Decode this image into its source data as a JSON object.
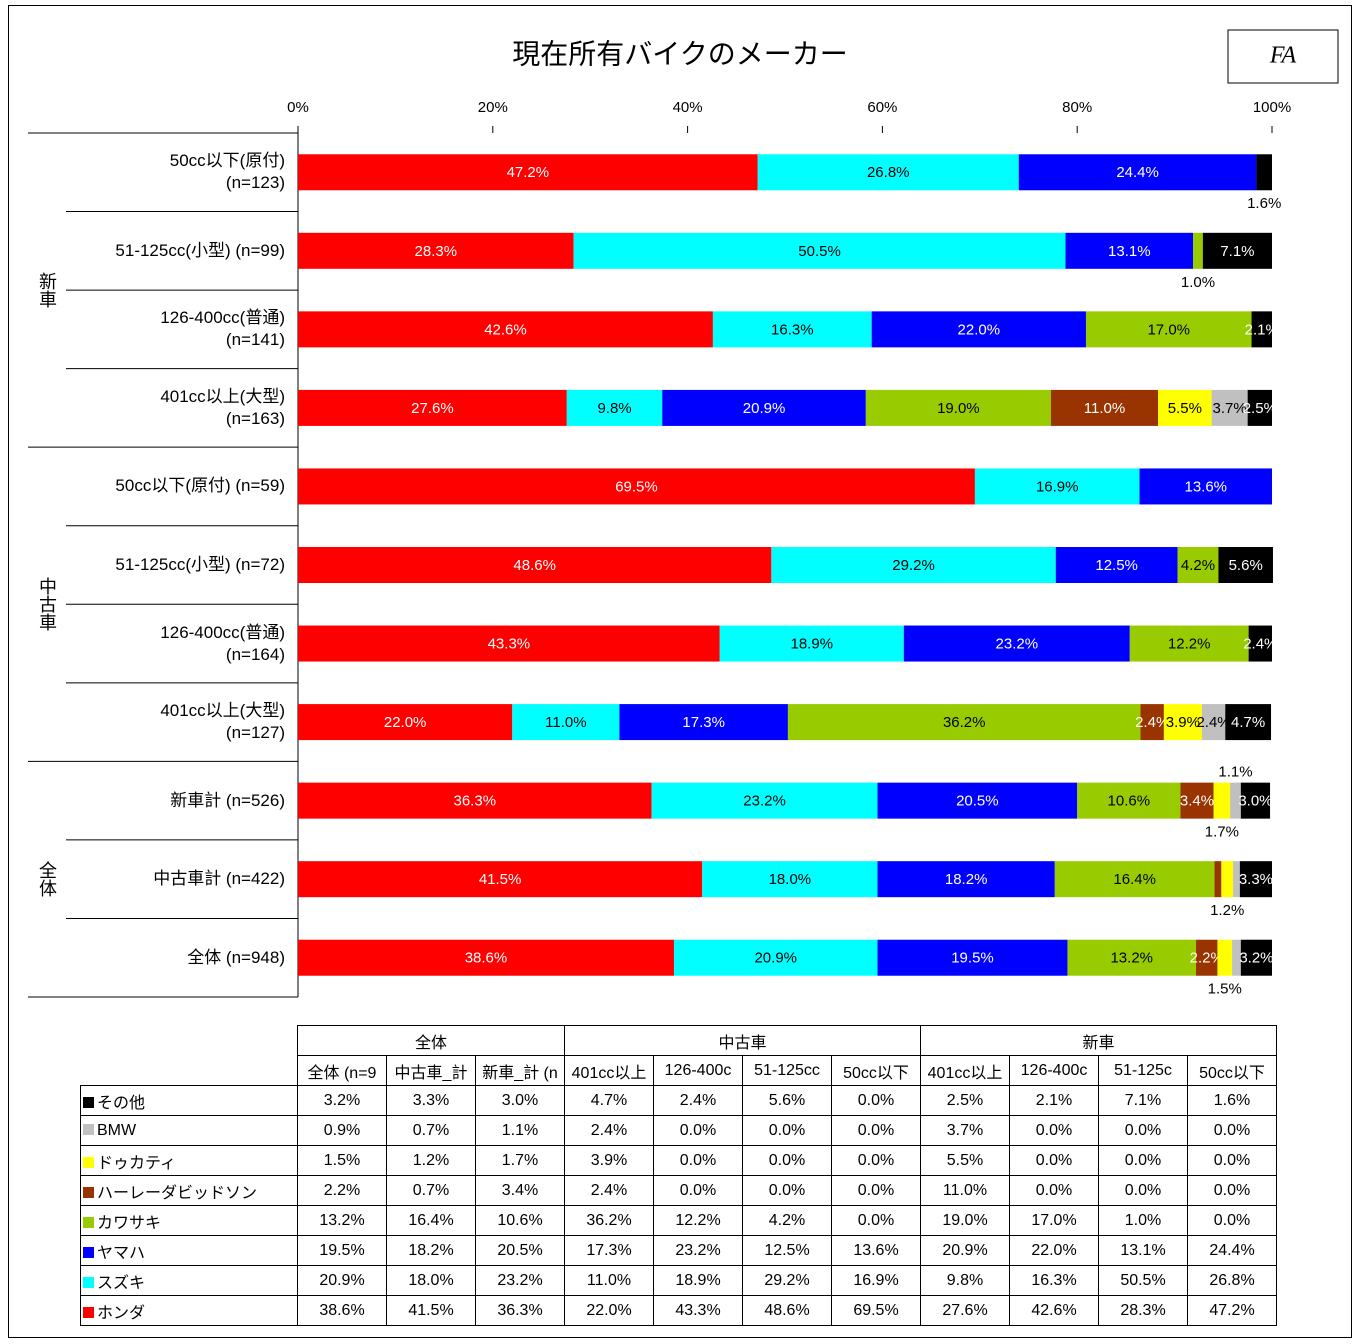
{
  "chart_data": {
    "type": "bar",
    "orientation": "horizontal",
    "stacked": true,
    "title": "現在所有バイクのメーカー",
    "badge": "FA",
    "xlim": [
      0,
      100
    ],
    "xticks": [
      {
        "value": 0,
        "label": "0%"
      },
      {
        "value": 20,
        "label": "20%"
      },
      {
        "value": 40,
        "label": "40%"
      },
      {
        "value": 60,
        "label": "60%"
      },
      {
        "value": 80,
        "label": "80%"
      },
      {
        "value": 100,
        "label": "100%"
      }
    ],
    "groups": [
      {
        "label": "新車",
        "size": 4
      },
      {
        "label": "中古車",
        "size": 4
      },
      {
        "label": "全体",
        "size": 3
      }
    ],
    "categories": [
      "50cc以下(原付)\n(n=123)",
      "51-125cc(小型) (n=99)",
      "126-400cc(普通)\n(n=141)",
      "401cc以上(大型)\n(n=163)",
      "50cc以下(原付) (n=59)",
      "51-125cc(小型) (n=72)",
      "126-400cc(普通)\n(n=164)",
      "401cc以上(大型)\n(n=127)",
      "新車計 (n=526)",
      "中古車計 (n=422)",
      "全体 (n=948)"
    ],
    "series": [
      {
        "name": "ホンダ",
        "color": "#ff0000",
        "values": [
          47.2,
          28.3,
          42.6,
          27.6,
          69.5,
          48.6,
          43.3,
          22.0,
          36.3,
          41.5,
          38.6
        ],
        "value_labels": [
          "47.2%",
          "28.3%",
          "42.6%",
          "27.6%",
          "69.5%",
          "48.6%",
          "43.3%",
          "22.0%",
          "36.3%",
          "41.5%",
          "38.6%"
        ]
      },
      {
        "name": "スズキ",
        "color": "#00ffff",
        "values": [
          26.8,
          50.5,
          16.3,
          9.8,
          16.9,
          29.2,
          18.9,
          11.0,
          23.2,
          18.0,
          20.9
        ],
        "value_labels": [
          "26.8%",
          "50.5%",
          "16.3%",
          "9.8%",
          "16.9%",
          "29.2%",
          "18.9%",
          "11.0%",
          "23.2%",
          "18.0%",
          "20.9%"
        ]
      },
      {
        "name": "ヤマハ",
        "color": "#0000ff",
        "values": [
          24.4,
          13.1,
          22.0,
          20.9,
          13.6,
          12.5,
          23.2,
          17.3,
          20.5,
          18.2,
          19.5
        ],
        "value_labels": [
          "24.4%",
          "13.1%",
          "22.0%",
          "20.9%",
          "13.6%",
          "12.5%",
          "23.2%",
          "17.3%",
          "20.5%",
          "18.2%",
          "19.5%"
        ]
      },
      {
        "name": "カワサキ",
        "color": "#99cc00",
        "values": [
          0.0,
          1.0,
          17.0,
          19.0,
          0.0,
          4.2,
          12.2,
          36.2,
          10.6,
          16.4,
          13.2
        ],
        "value_labels": [
          "0.0%",
          "1.0%",
          "17.0%",
          "19.0%",
          "0.0%",
          "4.2%",
          "12.2%",
          "36.2%",
          "10.6%",
          "16.4%",
          "13.2%"
        ]
      },
      {
        "name": "ハーレーダビッドソン",
        "color": "#993300",
        "values": [
          0.0,
          0.0,
          0.0,
          11.0,
          0.0,
          0.0,
          0.0,
          2.4,
          3.4,
          0.7,
          2.2
        ],
        "value_labels": [
          "0.0%",
          "0.0%",
          "0.0%",
          "11.0%",
          "0.0%",
          "0.0%",
          "0.0%",
          "2.4%",
          "3.4%",
          "0.7%",
          "2.2%"
        ]
      },
      {
        "name": "ドゥカティ",
        "color": "#ffff00",
        "values": [
          0.0,
          0.0,
          0.0,
          5.5,
          0.0,
          0.0,
          0.0,
          3.9,
          1.7,
          1.2,
          1.5
        ],
        "value_labels": [
          "0.0%",
          "0.0%",
          "0.0%",
          "5.5%",
          "0.0%",
          "0.0%",
          "0.0%",
          "3.9%",
          "1.7%",
          "1.2%",
          "1.5%"
        ]
      },
      {
        "name": "BMW",
        "color": "#c0c0c0",
        "values": [
          0.0,
          0.0,
          0.0,
          3.7,
          0.0,
          0.0,
          0.0,
          2.4,
          1.1,
          0.7,
          0.9
        ],
        "value_labels": [
          "0.0%",
          "0.0%",
          "0.0%",
          "3.7%",
          "0.0%",
          "0.0%",
          "0.0%",
          "2.4%",
          "1.1%",
          "0.7%",
          "0.9%"
        ]
      },
      {
        "name": "その他",
        "color": "#000000",
        "values": [
          1.6,
          7.1,
          2.1,
          2.5,
          0.0,
          5.6,
          2.4,
          4.7,
          3.0,
          3.3,
          3.2
        ],
        "value_labels": [
          "1.6%",
          "7.1%",
          "2.1%",
          "2.5%",
          "0.0%",
          "5.6%",
          "2.4%",
          "4.7%",
          "3.0%",
          "3.3%",
          "3.2%"
        ]
      }
    ]
  },
  "table": {
    "columns": [
      "全体 (n=9",
      "中古車_計",
      "新車_計 (n",
      "401cc以上",
      "126-400c",
      "51-125cc",
      "50cc以下",
      "401cc以上",
      "126-400c",
      "51-125c",
      "50cc以下"
    ]
  }
}
